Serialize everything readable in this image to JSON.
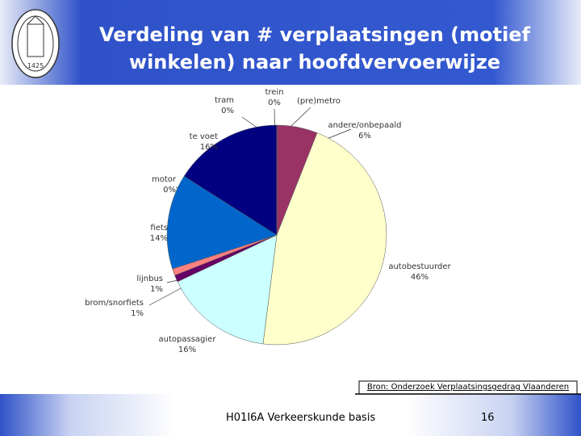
{
  "header": {
    "title": "Verdeling van # verplaatsingen (motief winkelen) naar hoofdvervoerwijze",
    "logo_year": "1425"
  },
  "chart_data": {
    "type": "pie",
    "categories": [
      "andere/onbepaald",
      "autobestuurder",
      "autopassagier",
      "brom/snorfiets",
      "lijnbus",
      "fiets",
      "motor",
      "te voet",
      "tram",
      "trein",
      "(pre)metro"
    ],
    "values": [
      6,
      46,
      16,
      1,
      1,
      14,
      0,
      16,
      0,
      0,
      0
    ],
    "value_labels": [
      "6%",
      "46%",
      "16%",
      "1%",
      "1%",
      "14%",
      "0%",
      "16%",
      "0%",
      "0%",
      null
    ],
    "colors": [
      "#993366",
      "#ffffcc",
      "#ccffff",
      "#660066",
      "#ff8080",
      "#0066cc",
      "#808080",
      "#000080",
      "#ff66cc",
      "#ff3399",
      "#cc0066"
    ],
    "source": "Bron: Onderzoek Verplaatsingsgedrag Vlaanderen"
  },
  "footer": {
    "course": "H01I6A Verkeerskunde basis",
    "page": "16"
  }
}
